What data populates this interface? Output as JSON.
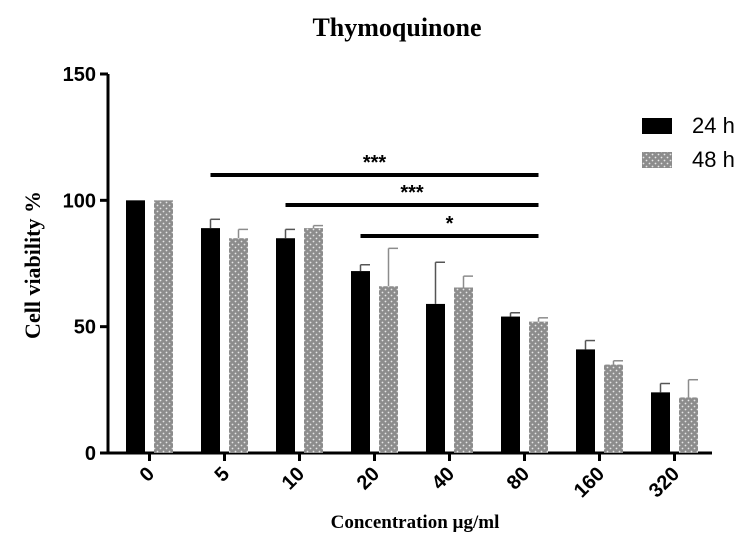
{
  "chart_data": {
    "type": "bar",
    "title": "Thymoquinone",
    "xlabel": "Concentration µg/ml",
    "ylabel": "Cell viability %",
    "categories": [
      "0",
      "5",
      "10",
      "20",
      "40",
      "80",
      "160",
      "320"
    ],
    "ylim": [
      0,
      150
    ],
    "yticks": [
      0,
      50,
      100,
      150
    ],
    "series": [
      {
        "name": "24 h",
        "color": "#000000",
        "pattern": "solid",
        "values": [
          100,
          89,
          85,
          72,
          59,
          54,
          41,
          24
        ],
        "errors": [
          0,
          3.5,
          3.5,
          2.5,
          16.5,
          1.5,
          3.5,
          3.5
        ]
      },
      {
        "name": "48 h",
        "color": "#8c8c8c",
        "pattern": "dotted",
        "values": [
          100,
          85,
          89,
          66,
          65.5,
          52,
          35,
          22
        ],
        "errors": [
          0,
          3.5,
          1,
          15,
          4.5,
          1.5,
          1.5,
          7
        ]
      }
    ],
    "significance": [
      {
        "label": "***",
        "from": "5",
        "to": "80"
      },
      {
        "label": "***",
        "from": "10",
        "to": "80"
      },
      {
        "label": "*",
        "from": "20",
        "to": "80"
      }
    ],
    "legend_position": "top-right",
    "grid": false
  }
}
